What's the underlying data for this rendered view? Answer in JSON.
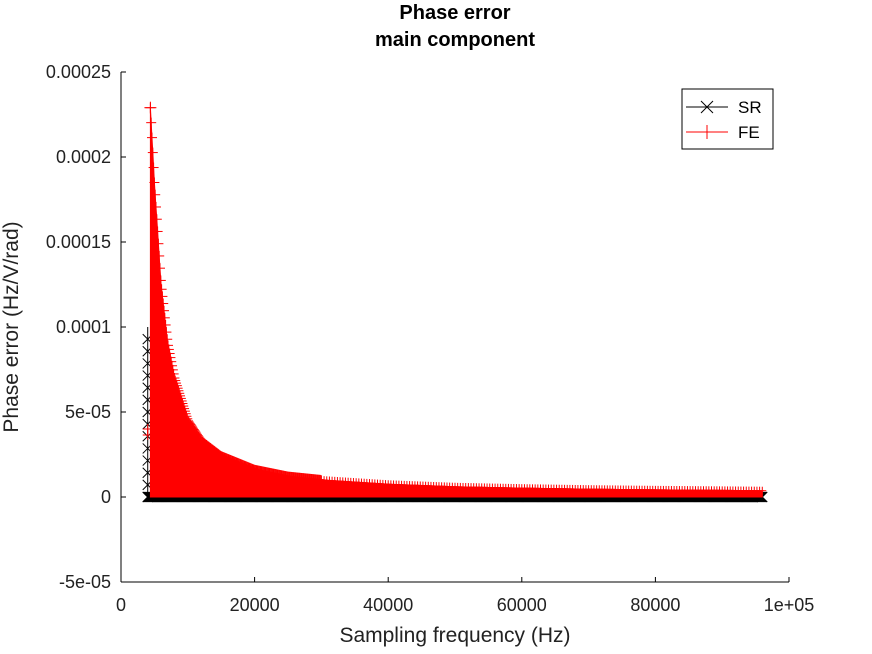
{
  "chart_data": {
    "type": "line",
    "title": "Phase error",
    "subtitle": "main component",
    "xlabel": "Sampling frequency (Hz)",
    "ylabel": "Phase error (Hz/V/rad)",
    "xlim": [
      0,
      100000
    ],
    "ylim": [
      -5e-05,
      0.00025
    ],
    "x_ticks": [
      0,
      20000,
      40000,
      60000,
      80000,
      100000
    ],
    "x_tick_labels": [
      "0",
      "20000",
      "40000",
      "60000",
      "80000",
      "1e+05"
    ],
    "y_ticks": [
      -5e-05,
      0,
      5e-05,
      0.0001,
      0.00015,
      0.0002,
      0.00025
    ],
    "y_tick_labels": [
      "-5e-05",
      "0",
      "5e-05",
      "0.0001",
      "0.00015",
      "0.0002",
      "0.00025"
    ],
    "grid": false,
    "legend_position": "top-right",
    "series": [
      {
        "name": "SR",
        "color": "#000000",
        "marker": "x",
        "x": [
          4000,
          10000,
          20000,
          40000,
          60000,
          80000,
          96000
        ],
        "y": [
          0.0001,
          0.0,
          0.0,
          0.0,
          0.0,
          0.0,
          0.0
        ]
      },
      {
        "name": "FE",
        "color": "#ff0000",
        "marker": "+",
        "x": [
          4000,
          4400,
          5000,
          6000,
          7000,
          8000,
          10000,
          12000,
          15000,
          20000,
          25000,
          30000,
          40000,
          50000,
          60000,
          70000,
          80000,
          90000,
          96000
        ],
        "y": [
          4e-05,
          0.000229,
          0.000185,
          0.000125,
          9e-05,
          7e-05,
          4.5e-05,
          3.3e-05,
          2.4e-05,
          1.6e-05,
          1.2e-05,
          1e-05,
          7.5e-06,
          6e-06,
          5.2e-06,
          4.6e-06,
          4.2e-06,
          3.9e-06,
          3.7e-06
        ]
      }
    ]
  }
}
